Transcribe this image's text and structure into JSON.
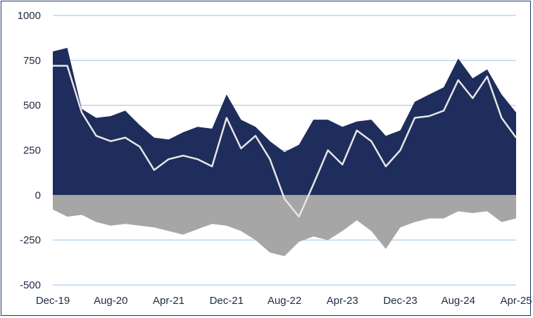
{
  "chart_data": {
    "type": "area",
    "title": "",
    "xlabel": "",
    "ylabel": "",
    "ylim": [
      -500,
      1000
    ],
    "grid": true,
    "legend": "none",
    "x_ticks": [
      "Dec-19",
      "Aug-20",
      "Apr-21",
      "Dec-21",
      "Aug-22",
      "Apr-23",
      "Dec-23",
      "Aug-24",
      "Apr-25"
    ],
    "y_ticks": [
      1000,
      750,
      500,
      250,
      0,
      -250,
      -500
    ],
    "x": [
      "Dec-19",
      "Feb-20",
      "Apr-20",
      "Jun-20",
      "Aug-20",
      "Oct-20",
      "Dec-20",
      "Feb-21",
      "Apr-21",
      "Jun-21",
      "Aug-21",
      "Oct-21",
      "Dec-21",
      "Feb-22",
      "Apr-22",
      "Jun-22",
      "Aug-22",
      "Oct-22",
      "Dec-22",
      "Feb-23",
      "Apr-23",
      "Jun-23",
      "Aug-23",
      "Oct-23",
      "Dec-23",
      "Feb-24",
      "Apr-24",
      "Jun-24",
      "Aug-24",
      "Oct-24",
      "Dec-24",
      "Feb-25",
      "Apr-25"
    ],
    "series": [
      {
        "type": "area",
        "color": "#1f2d5c",
        "values": [
          800,
          820,
          480,
          430,
          440,
          470,
          390,
          320,
          310,
          350,
          380,
          370,
          560,
          420,
          380,
          300,
          240,
          280,
          420,
          420,
          380,
          410,
          420,
          330,
          360,
          520,
          560,
          600,
          760,
          650,
          700,
          560,
          460
        ]
      },
      {
        "type": "area",
        "color": "#a6a6a6",
        "values": [
          -80,
          -120,
          -110,
          -150,
          -170,
          -160,
          -170,
          -180,
          -200,
          -220,
          -190,
          -160,
          -170,
          -200,
          -250,
          -320,
          -340,
          -260,
          -230,
          -250,
          -200,
          -140,
          -200,
          -300,
          -180,
          -150,
          -130,
          -130,
          -90,
          -100,
          -90,
          -150,
          -130
        ]
      },
      {
        "type": "line",
        "color": "#e6e6e6",
        "values": [
          720,
          720,
          460,
          330,
          300,
          320,
          270,
          140,
          200,
          220,
          200,
          160,
          430,
          260,
          330,
          200,
          -20,
          -120,
          60,
          250,
          170,
          360,
          300,
          160,
          250,
          430,
          440,
          470,
          640,
          540,
          660,
          430,
          320
        ]
      }
    ]
  }
}
